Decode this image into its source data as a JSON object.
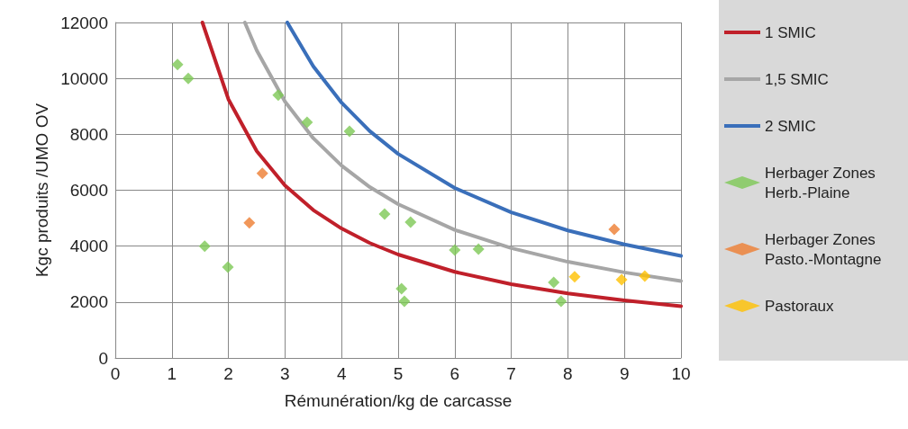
{
  "chart_data": {
    "type": "scatter",
    "xlabel": "Rémunération/kg de carcasse",
    "ylabel": "Kgc produits /UMO OV",
    "xlim": [
      0,
      10
    ],
    "xticks": [
      0,
      1,
      2,
      3,
      4,
      5,
      6,
      7,
      8,
      9,
      10
    ],
    "ylim": [
      0,
      12000
    ],
    "yticks": [
      0,
      2000,
      4000,
      6000,
      8000,
      10000,
      12000
    ],
    "grid": true,
    "legend": "right",
    "series": [
      {
        "name": "1 SMIC",
        "type": "line",
        "marker": "none",
        "color": "#c0202a",
        "x": [
          1.54,
          2,
          2.5,
          3,
          3.5,
          4,
          4.5,
          5,
          6,
          7,
          8,
          9,
          10
        ],
        "values": [
          12000,
          9250,
          7400,
          6170,
          5290,
          4630,
          4110,
          3700,
          3080,
          2640,
          2310,
          2060,
          1850
        ]
      },
      {
        "name": "1,5 SMIC",
        "type": "line",
        "marker": "none",
        "color": "#a6a6a6",
        "x": [
          2.29,
          2.5,
          3,
          3.5,
          4,
          4.5,
          5,
          6,
          7,
          8,
          9,
          10
        ],
        "values": [
          12000,
          11000,
          9170,
          7860,
          6880,
          6110,
          5500,
          4580,
          3930,
          3440,
          3060,
          2750
        ]
      },
      {
        "name": "2 SMIC",
        "type": "line",
        "marker": "none",
        "color": "#3a6fba",
        "x": [
          3.04,
          3.5,
          4,
          4.5,
          5,
          6,
          7,
          8,
          9,
          10
        ],
        "values": [
          12000,
          10430,
          9130,
          8110,
          7300,
          6080,
          5210,
          4560,
          4060,
          3650
        ]
      },
      {
        "name": "Herbager Zones Herb.-Plaine",
        "marker": "diamond",
        "color": "#7dc855",
        "x": [
          1.1,
          1.29,
          1.58,
          1.99,
          2.88,
          3.39,
          4.14,
          4.76,
          5.22,
          5.06,
          5.11,
          6.0,
          6.42,
          7.75,
          7.88
        ],
        "values": [
          10500,
          10000,
          4000,
          3250,
          9400,
          8430,
          8110,
          5150,
          4860,
          2480,
          2030,
          3860,
          3890,
          2700,
          2030
        ]
      },
      {
        "name": "Herbager Zones Pasto.-Montagne",
        "marker": "diamond",
        "color": "#ed7d31",
        "x": [
          2.37,
          2.6,
          8.82
        ],
        "values": [
          4830,
          6600,
          4600
        ]
      },
      {
        "name": "Pastoraux",
        "marker": "diamond",
        "color": "#ffc000",
        "x": [
          8.12,
          8.95,
          9.36
        ],
        "values": [
          2900,
          2800,
          2930
        ]
      }
    ]
  }
}
